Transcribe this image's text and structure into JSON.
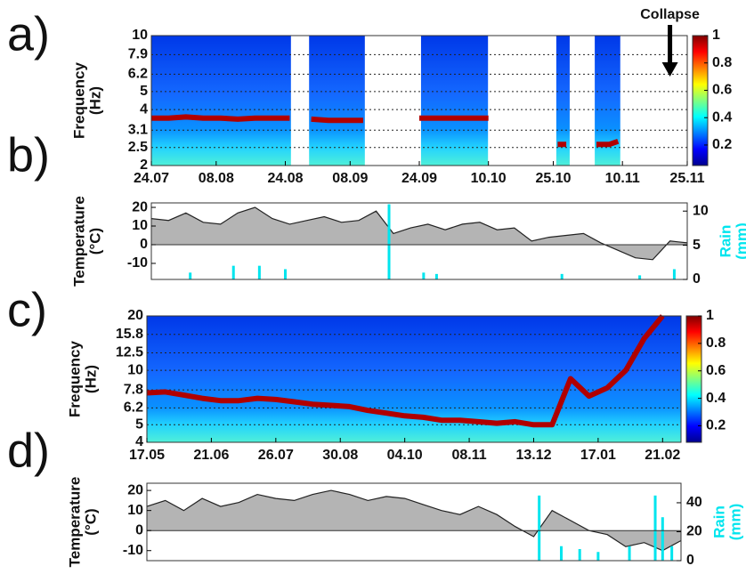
{
  "chart_data": [
    {
      "type": "heatmap",
      "label": "a)",
      "ylabel": [
        "Frequency",
        "(Hz)"
      ],
      "xlim": [
        0,
        124
      ],
      "xticks": [
        {
          "value": 0,
          "label": "24.07"
        },
        {
          "value": 15,
          "label": "08.08"
        },
        {
          "value": 31,
          "label": "24.08"
        },
        {
          "value": 46,
          "label": "08.09"
        },
        {
          "value": 62,
          "label": "24.09"
        },
        {
          "value": 78,
          "label": "10.10"
        },
        {
          "value": 93,
          "label": "25.10"
        },
        {
          "value": 109,
          "label": "10.11"
        },
        {
          "value": 124,
          "label": "25.11"
        }
      ],
      "ylim": [
        2,
        10
      ],
      "log_y": true,
      "yticks": [
        2,
        2.5,
        3.1,
        4,
        5,
        6.2,
        7.9,
        10
      ],
      "grid": true,
      "segments": [
        [
          0,
          32.3
        ],
        [
          36.5,
          49.4
        ],
        [
          62.4,
          77.9
        ],
        [
          93.7,
          96.8
        ],
        [
          102.6,
          108.5
        ]
      ],
      "x": [
        0,
        4,
        8,
        12,
        16,
        20,
        24,
        28,
        32,
        34,
        37,
        41,
        45,
        49,
        55,
        62,
        66,
        70,
        74,
        78,
        85,
        94,
        96,
        100,
        103,
        106,
        108
      ],
      "values": [
        3.6,
        3.6,
        3.65,
        3.6,
        3.6,
        3.55,
        3.6,
        3.6,
        3.6,
        null,
        3.55,
        3.5,
        3.5,
        3.5,
        null,
        3.6,
        3.6,
        3.6,
        3.6,
        3.6,
        null,
        2.6,
        2.6,
        null,
        2.6,
        2.6,
        2.7
      ],
      "color": "#b00000",
      "clim": [
        0.05,
        1
      ],
      "colorbar_ticks": [
        0.2,
        0.4,
        0.6,
        0.8,
        1
      ],
      "annotation": {
        "text": "Collapse",
        "x": 120
      }
    },
    {
      "type": "weather",
      "label": "b)",
      "ylabel": [
        "Temperature",
        "(°C)"
      ],
      "y2label": [
        "Rain",
        "(mm)"
      ],
      "xlim": [
        0,
        124
      ],
      "ylim": [
        -18.6,
        22.4
      ],
      "yticks": [
        -10,
        0,
        10,
        20
      ],
      "y2lim": [
        0,
        11.2
      ],
      "y2ticks": [
        0,
        5,
        10
      ],
      "series": [
        {
          "color": "#222222",
          "fill": "#b4b4b4",
          "x": [
            0,
            4,
            8,
            12,
            16,
            20,
            24,
            28,
            32,
            36,
            40,
            44,
            48,
            52,
            56,
            60,
            64,
            68,
            72,
            76,
            80,
            84,
            88,
            92,
            96,
            100,
            104,
            108,
            112,
            116,
            120,
            124
          ],
          "values": [
            14,
            13,
            17,
            12,
            11,
            17,
            20,
            14,
            11,
            13,
            15,
            12,
            13,
            18,
            6,
            9,
            11,
            8,
            11,
            12,
            8,
            9,
            2,
            4,
            5,
            6,
            1,
            -3,
            -7,
            -8,
            2,
            1
          ]
        },
        {
          "color": "#00e5ee",
          "axis": "y2",
          "x": [
            9,
            19,
            25,
            31,
            55,
            63,
            66,
            95,
            113,
            121
          ],
          "values": [
            1,
            2,
            2,
            1.5,
            11,
            1,
            0.8,
            0.8,
            0.6,
            1.5
          ]
        }
      ]
    },
    {
      "type": "heatmap",
      "label": "c)",
      "ylabel": [
        "Frequency",
        "(Hz)"
      ],
      "xlim": [
        0,
        290
      ],
      "xticks": [
        {
          "value": 0,
          "label": "17.05"
        },
        {
          "value": 35,
          "label": "21.06"
        },
        {
          "value": 70,
          "label": "26.07"
        },
        {
          "value": 105,
          "label": "30.08"
        },
        {
          "value": 140,
          "label": "04.10"
        },
        {
          "value": 175,
          "label": "08.11"
        },
        {
          "value": 210,
          "label": "13.12"
        },
        {
          "value": 245,
          "label": "17.01"
        },
        {
          "value": 280,
          "label": "21.02"
        }
      ],
      "ylim": [
        4,
        20
      ],
      "log_y": true,
      "yticks": [
        4,
        5,
        6.2,
        7.8,
        10,
        12.5,
        15.8,
        20
      ],
      "grid": true,
      "x": [
        0,
        10,
        20,
        30,
        40,
        50,
        60,
        70,
        80,
        90,
        100,
        110,
        120,
        130,
        140,
        150,
        160,
        170,
        180,
        190,
        200,
        210,
        220,
        230,
        240,
        250,
        260,
        270,
        280
      ],
      "values": [
        7.5,
        7.6,
        7.3,
        7.0,
        6.8,
        6.8,
        7.0,
        6.9,
        6.7,
        6.5,
        6.4,
        6.3,
        6.0,
        5.8,
        5.6,
        5.5,
        5.3,
        5.3,
        5.2,
        5.1,
        5.2,
        5.0,
        5.0,
        9.0,
        7.2,
        8.0,
        10,
        15,
        20
      ],
      "color": "#b00000",
      "clim": [
        0.08,
        1
      ],
      "colorbar_ticks": [
        0.2,
        0.4,
        0.6,
        0.8,
        1
      ]
    },
    {
      "type": "weather",
      "label": "d)",
      "ylabel": [
        "Temperature",
        "(°C)"
      ],
      "y2label": [
        "Rain",
        "(mm)"
      ],
      "xlim": [
        0,
        290
      ],
      "ylim": [
        -15,
        23.6
      ],
      "yticks": [
        -10,
        0,
        10,
        20
      ],
      "y2lim": [
        0,
        53.5
      ],
      "y2ticks": [
        0,
        20,
        40
      ],
      "series": [
        {
          "color": "#222222",
          "fill": "#b4b4b4",
          "x": [
            0,
            10,
            20,
            30,
            40,
            50,
            60,
            70,
            80,
            90,
            100,
            110,
            120,
            130,
            140,
            150,
            160,
            170,
            180,
            190,
            200,
            210,
            220,
            230,
            240,
            250,
            260,
            270,
            280,
            290
          ],
          "values": [
            12,
            15,
            10,
            16,
            12,
            14,
            18,
            16,
            15,
            18,
            20,
            18,
            15,
            17,
            16,
            13,
            10,
            8,
            12,
            8,
            2,
            -3,
            10,
            5,
            0,
            -2,
            -8,
            -6,
            -10,
            -5
          ]
        },
        {
          "color": "#00e5ee",
          "axis": "y2",
          "x": [
            213,
            225,
            235,
            245,
            262,
            276,
            280,
            285
          ],
          "values": [
            45,
            10,
            8,
            6,
            10,
            45,
            30,
            10
          ]
        }
      ]
    }
  ]
}
